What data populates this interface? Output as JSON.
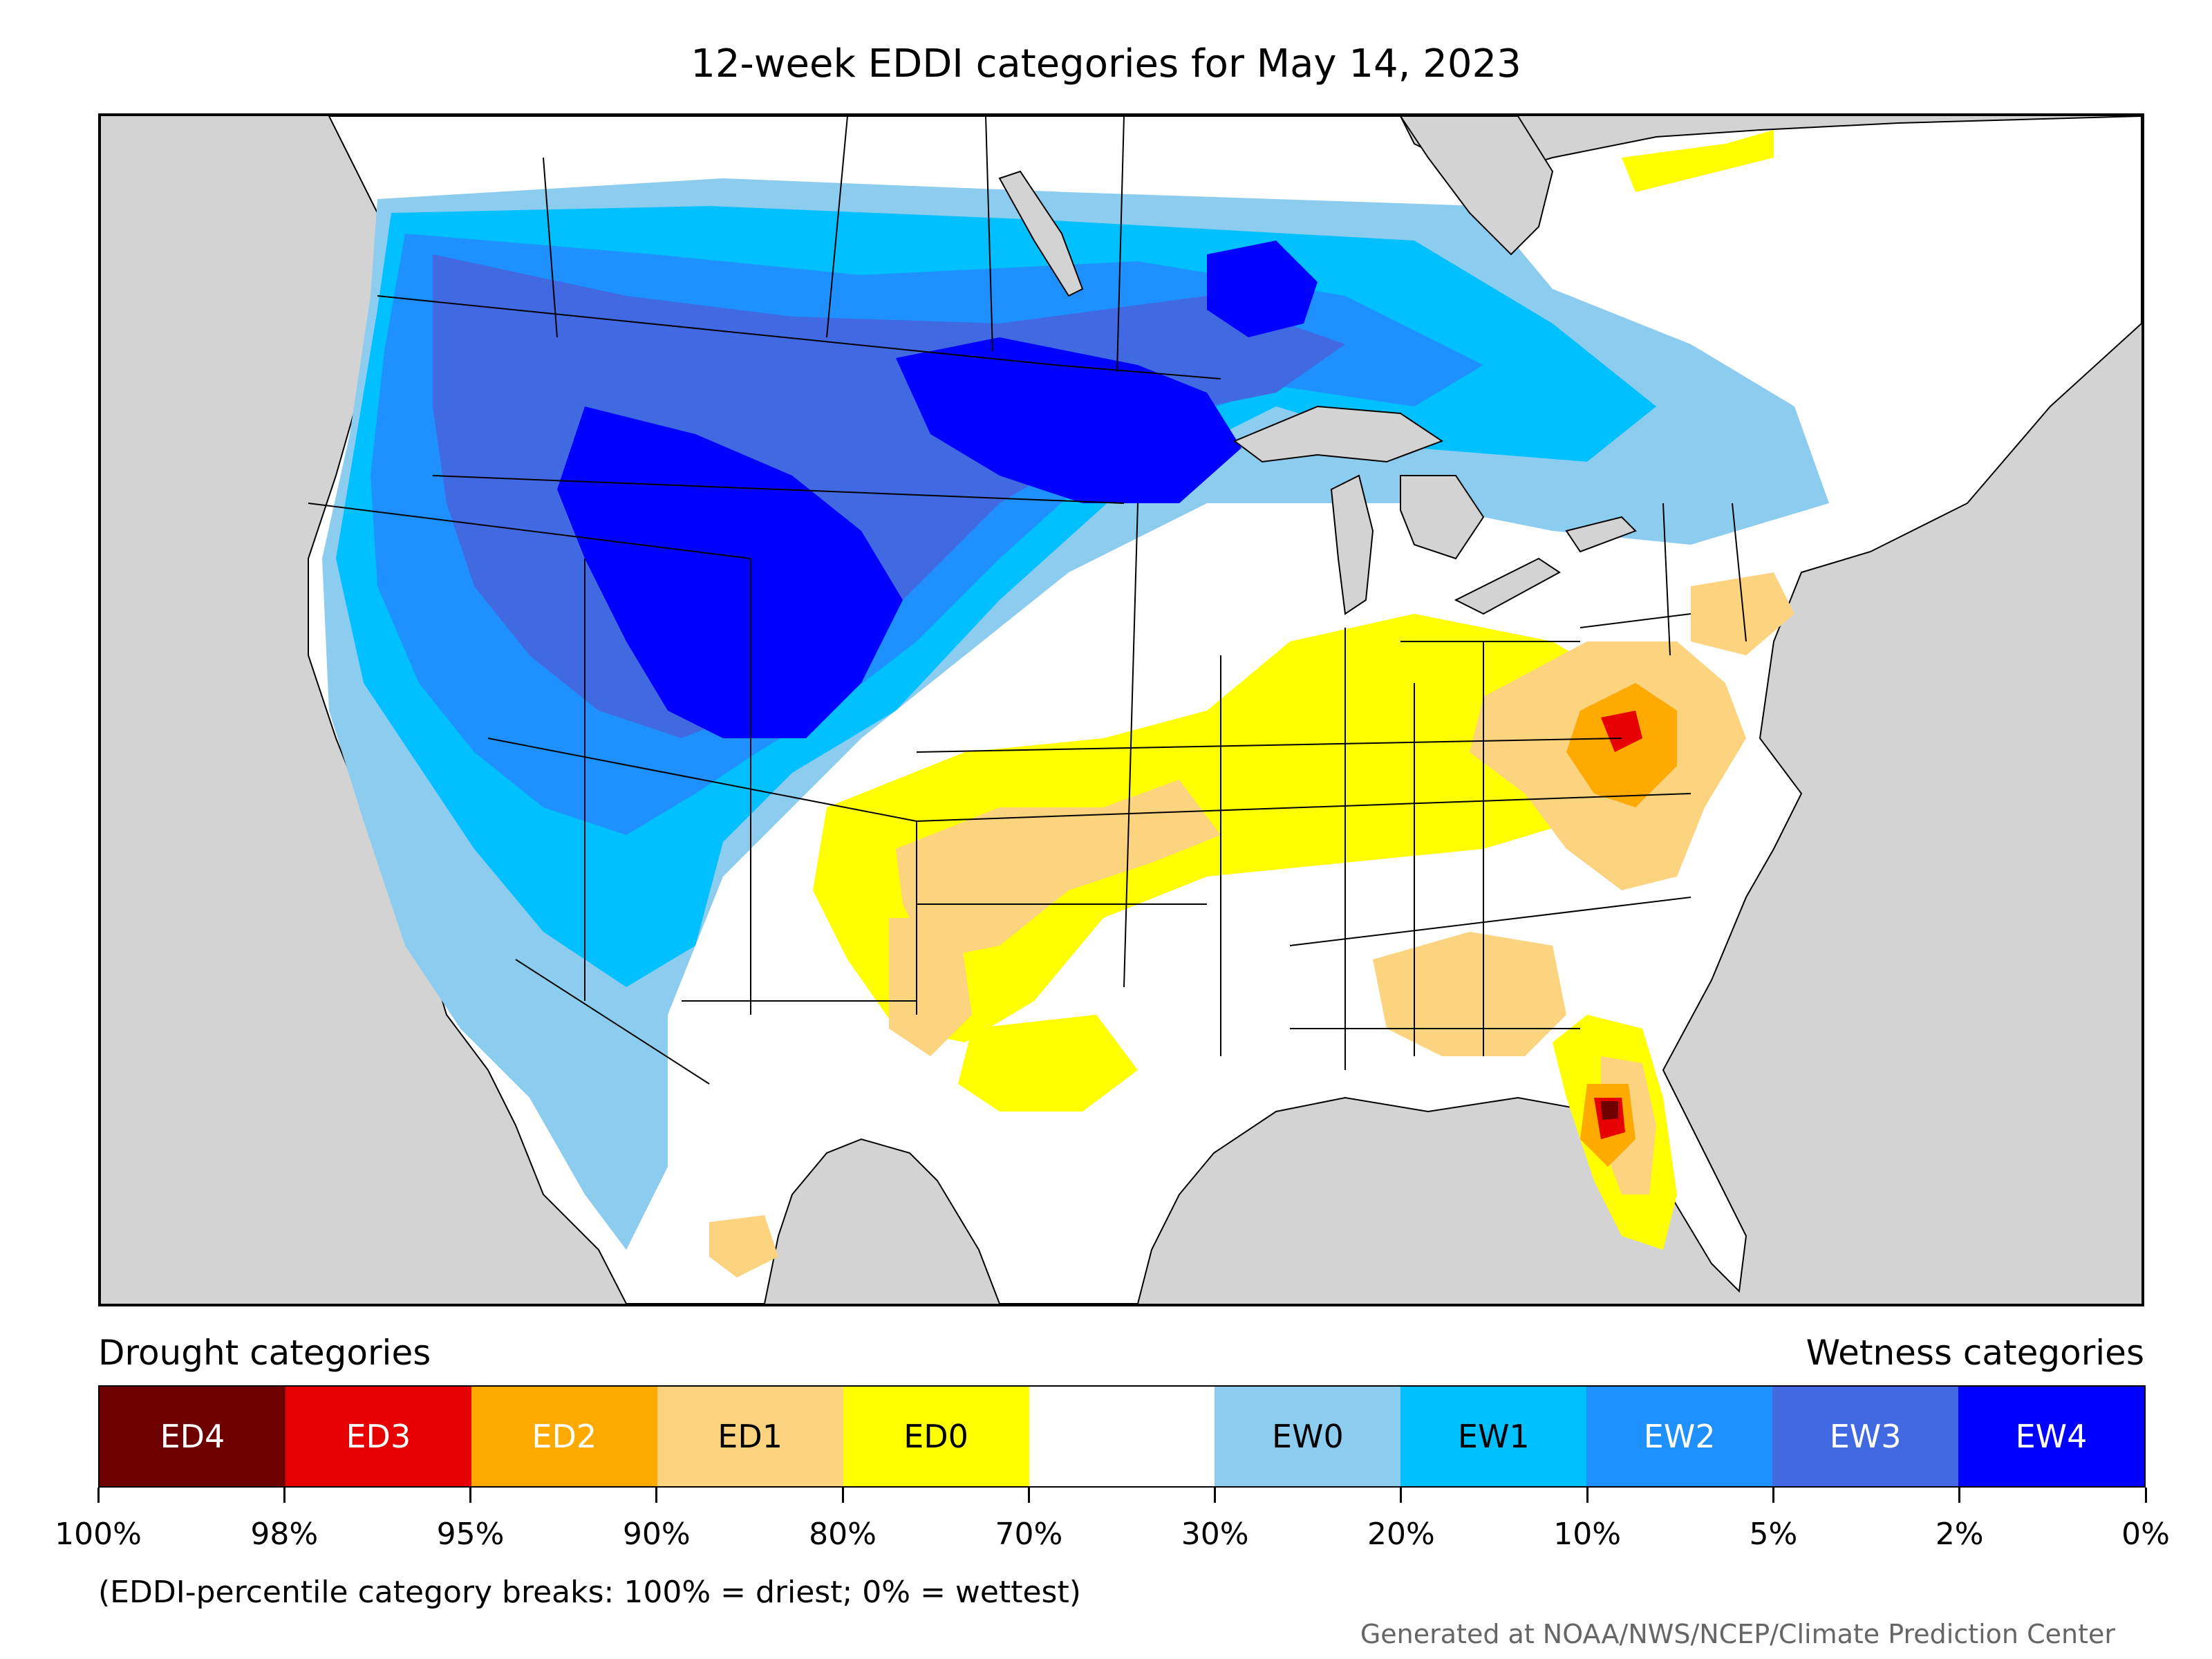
{
  "title": "12-week EDDI categories for May 14, 2023",
  "legend": {
    "drought_heading": "Drought categories",
    "wetness_heading": "Wetness categories",
    "categories": [
      {
        "label": "ED4",
        "color": "#6e0000",
        "text_color": "#ffffff"
      },
      {
        "label": "ED3",
        "color": "#e60000",
        "text_color": "#ffffff"
      },
      {
        "label": "ED2",
        "color": "#ffaa00",
        "text_color": "#ffffff"
      },
      {
        "label": "ED1",
        "color": "#fcd37f",
        "text_color": "#000000"
      },
      {
        "label": "ED0",
        "color": "#ffff00",
        "text_color": "#000000"
      },
      {
        "label": "",
        "color": "#ffffff",
        "text_color": "#000000"
      },
      {
        "label": "EW0",
        "color": "#8ccdef",
        "text_color": "#000000"
      },
      {
        "label": "EW1",
        "color": "#00c0ff",
        "text_color": "#000000"
      },
      {
        "label": "EW2",
        "color": "#1e90ff",
        "text_color": "#ffffff"
      },
      {
        "label": "EW3",
        "color": "#4169e1",
        "text_color": "#ffffff"
      },
      {
        "label": "EW4",
        "color": "#0000ff",
        "text_color": "#ffffff"
      }
    ],
    "breaks": [
      "100%",
      "98%",
      "95%",
      "90%",
      "80%",
      "70%",
      "30%",
      "20%",
      "10%",
      "5%",
      "2%",
      "0%"
    ],
    "note": "(EDDI-percentile category breaks: 100% = driest; 0% = wettest)"
  },
  "credit": "Generated at NOAA/NWS/NCEP/Climate Prediction Center",
  "colors": {
    "ocean": "#d3d3d3",
    "lakes": "#d3d3d3",
    "borders": "#000000"
  }
}
